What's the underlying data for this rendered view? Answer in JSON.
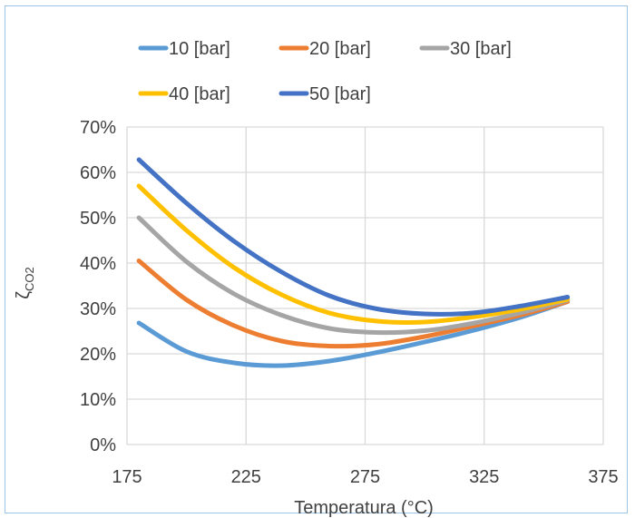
{
  "chart_data": {
    "type": "line",
    "title": "",
    "xlabel": "Temperatura (°C)",
    "ylabel": "ζ",
    "ylabel_sub": "CO2",
    "xlim": [
      175,
      375
    ],
    "ylim": [
      0,
      0.7
    ],
    "x_ticks": [
      "175",
      "225",
      "275",
      "325",
      "375"
    ],
    "y_ticks": [
      "0%",
      "10%",
      "20%",
      "30%",
      "40%",
      "50%",
      "60%",
      "70%"
    ],
    "grid": true,
    "legend_position": "top",
    "x": [
      180,
      200,
      220,
      240,
      260,
      280,
      300,
      320,
      340,
      360
    ],
    "series": [
      {
        "name": "10 [bar]",
        "color": "#5b9bd5",
        "values": [
          0.268,
          0.205,
          0.18,
          0.174,
          0.184,
          0.203,
          0.226,
          0.251,
          0.28,
          0.315
        ]
      },
      {
        "name": "20 [bar]",
        "color": "#ed7d31",
        "values": [
          0.405,
          0.319,
          0.262,
          0.228,
          0.217,
          0.221,
          0.238,
          0.261,
          0.285,
          0.315
        ]
      },
      {
        "name": "30 [bar]",
        "color": "#a5a5a5",
        "values": [
          0.5,
          0.403,
          0.332,
          0.285,
          0.256,
          0.247,
          0.251,
          0.267,
          0.29,
          0.318
        ]
      },
      {
        "name": "40 [bar]",
        "color": "#ffc000",
        "values": [
          0.57,
          0.472,
          0.39,
          0.33,
          0.29,
          0.272,
          0.27,
          0.281,
          0.298,
          0.32
        ]
      },
      {
        "name": "50 [bar]",
        "color": "#4472c4",
        "values": [
          0.628,
          0.532,
          0.448,
          0.38,
          0.328,
          0.299,
          0.288,
          0.29,
          0.305,
          0.325
        ]
      }
    ]
  }
}
